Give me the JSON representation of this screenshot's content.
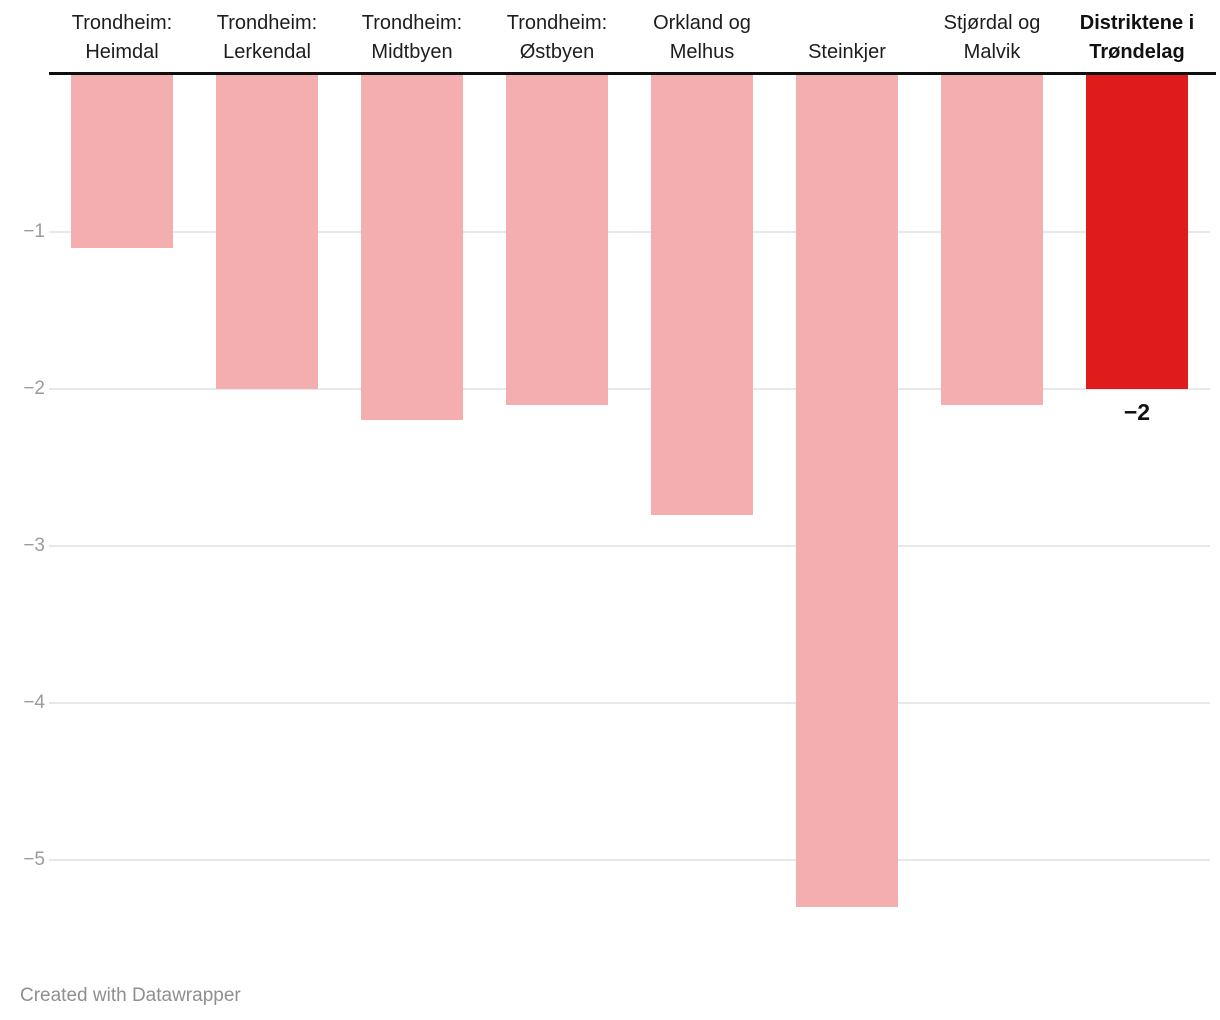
{
  "chart_data": {
    "type": "bar",
    "orientation": "vertical-negative",
    "categories": [
      "Trondheim: Heimdal",
      "Trondheim: Lerkendal",
      "Trondheim: Midtbyen",
      "Trondheim: Østbyen",
      "Orkland og Melhus",
      "Steinkjer",
      "Stjørdal og Malvik",
      "Distriktene i Trøndelag"
    ],
    "values": [
      -1.1,
      -2,
      -2.2,
      -2.1,
      -2.8,
      -5.3,
      -2.1,
      -2
    ],
    "yticks": [
      -1,
      -2,
      -3,
      -4,
      -5
    ],
    "ylim": [
      0,
      -5.5
    ],
    "grid": true,
    "title": "",
    "xlabel": "",
    "ylabel": "",
    "highlight": {
      "index": 7,
      "label": "−2",
      "color": "#e01b1c"
    },
    "colors": {
      "bar": "#f4aeb0",
      "highlight_bar": "#e01b1c",
      "zero_line": "#0f0f0f",
      "gridline": "#e8e8e8",
      "tick_text": "#9b9b9b",
      "category_text": "#1d1d1d"
    }
  },
  "footer": {
    "credit": "Created with Datawrapper"
  }
}
